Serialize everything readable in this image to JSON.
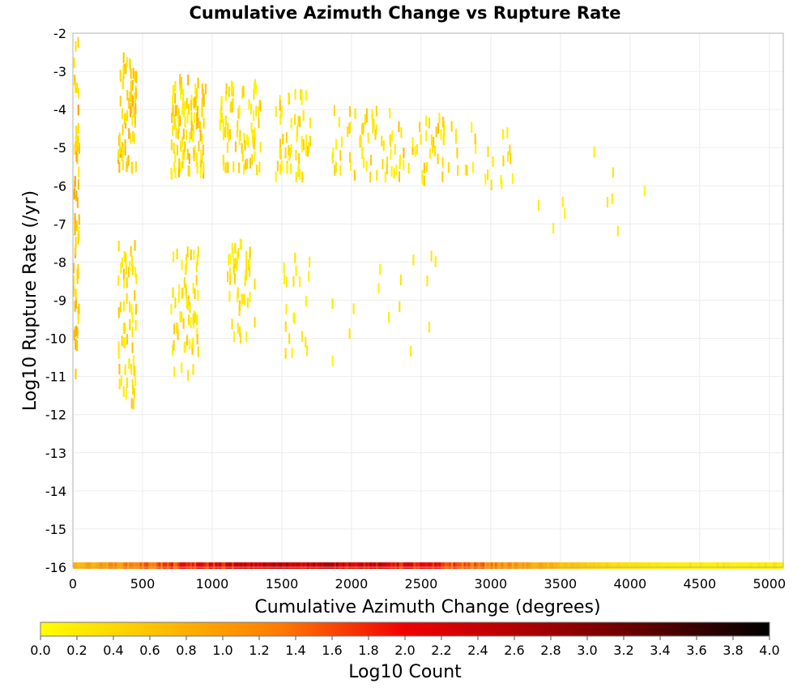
{
  "chart_data": {
    "type": "heatmap",
    "title": "Cumulative Azimuth Change vs Rupture Rate",
    "xlabel": "Cumulative Azimuth Change (degrees)",
    "ylabel": "Log10 Rupture Rate (/yr)",
    "xlim": [
      0,
      5100
    ],
    "ylim": [
      -16,
      -2
    ],
    "x_ticks": [
      "0",
      "500",
      "1000",
      "1500",
      "2000",
      "2500",
      "3000",
      "3500",
      "4000",
      "4500",
      "5000"
    ],
    "y_ticks": [
      "-2",
      "-3",
      "-4",
      "-5",
      "-6",
      "-7",
      "-8",
      "-9",
      "-10",
      "-11",
      "-12",
      "-13",
      "-14",
      "-15",
      "-16"
    ],
    "grid": true,
    "colorbar": {
      "label": "Log10 Count",
      "range": [
        0.0,
        4.0
      ],
      "ticks": [
        "0.0",
        "0.2",
        "0.4",
        "0.6",
        "0.8",
        "1.0",
        "1.2",
        "1.4",
        "1.6",
        "1.8",
        "2.0",
        "2.2",
        "2.4",
        "2.6",
        "2.8",
        "3.0",
        "3.2",
        "3.4",
        "3.6",
        "3.8",
        "4.0"
      ],
      "colors": [
        "#ffff00",
        "#ffc000",
        "#ff7a00",
        "#f00000",
        "#b00000",
        "#600000",
        "#000000"
      ]
    },
    "cell_size": {
      "x_degrees": 12,
      "y_log10": 0.28
    },
    "clusters": [
      {
        "x": [
          0,
          40
        ],
        "y": [
          -11,
          -2.2
        ],
        "count": 60,
        "value": [
          0.2,
          1.0
        ]
      },
      {
        "x": [
          320,
          450
        ],
        "y": [
          -5.6,
          -2.5
        ],
        "count": 70,
        "value": [
          0.2,
          0.9
        ]
      },
      {
        "x": [
          320,
          450
        ],
        "y": [
          -11.8,
          -7.4
        ],
        "count": 60,
        "value": [
          0.1,
          0.7
        ]
      },
      {
        "x": [
          700,
          950
        ],
        "y": [
          -5.7,
          -3.2
        ],
        "count": 110,
        "value": [
          0.1,
          0.8
        ]
      },
      {
        "x": [
          700,
          900
        ],
        "y": [
          -11,
          -7.6
        ],
        "count": 60,
        "value": [
          0.1,
          0.6
        ]
      },
      {
        "x": [
          1050,
          1350
        ],
        "y": [
          -5.6,
          -3.3
        ],
        "count": 80,
        "value": [
          0.1,
          0.6
        ]
      },
      {
        "x": [
          1100,
          1300
        ],
        "y": [
          -10,
          -7.5
        ],
        "count": 45,
        "value": [
          0.1,
          0.5
        ]
      },
      {
        "x": [
          1450,
          1700
        ],
        "y": [
          -5.8,
          -3.5
        ],
        "count": 55,
        "value": [
          0.1,
          0.6
        ]
      },
      {
        "x": [
          1500,
          1700
        ],
        "y": [
          -10.4,
          -7.8
        ],
        "count": 20,
        "value": [
          0.1,
          0.4
        ]
      },
      {
        "x": [
          1850,
          2300
        ],
        "y": [
          -5.8,
          -4.0
        ],
        "count": 55,
        "value": [
          0.1,
          0.6
        ]
      },
      {
        "x": [
          2300,
          2700
        ],
        "y": [
          -5.9,
          -4.2
        ],
        "count": 45,
        "value": [
          0.1,
          0.7
        ]
      },
      {
        "x": [
          2700,
          3200
        ],
        "y": [
          -6.0,
          -4.4
        ],
        "count": 25,
        "value": [
          0.1,
          0.6
        ]
      },
      {
        "x": [
          3300,
          4100
        ],
        "y": [
          -7.3,
          -5.1
        ],
        "count": 10,
        "value": [
          0.1,
          0.3
        ]
      },
      {
        "x": [
          1800,
          2800
        ],
        "y": [
          -10.6,
          -7.8
        ],
        "count": 15,
        "value": [
          0.1,
          0.3
        ]
      }
    ],
    "bottom_row": {
      "y": -16,
      "x": [
        0,
        5100
      ],
      "peak_value": 2.4
    }
  }
}
